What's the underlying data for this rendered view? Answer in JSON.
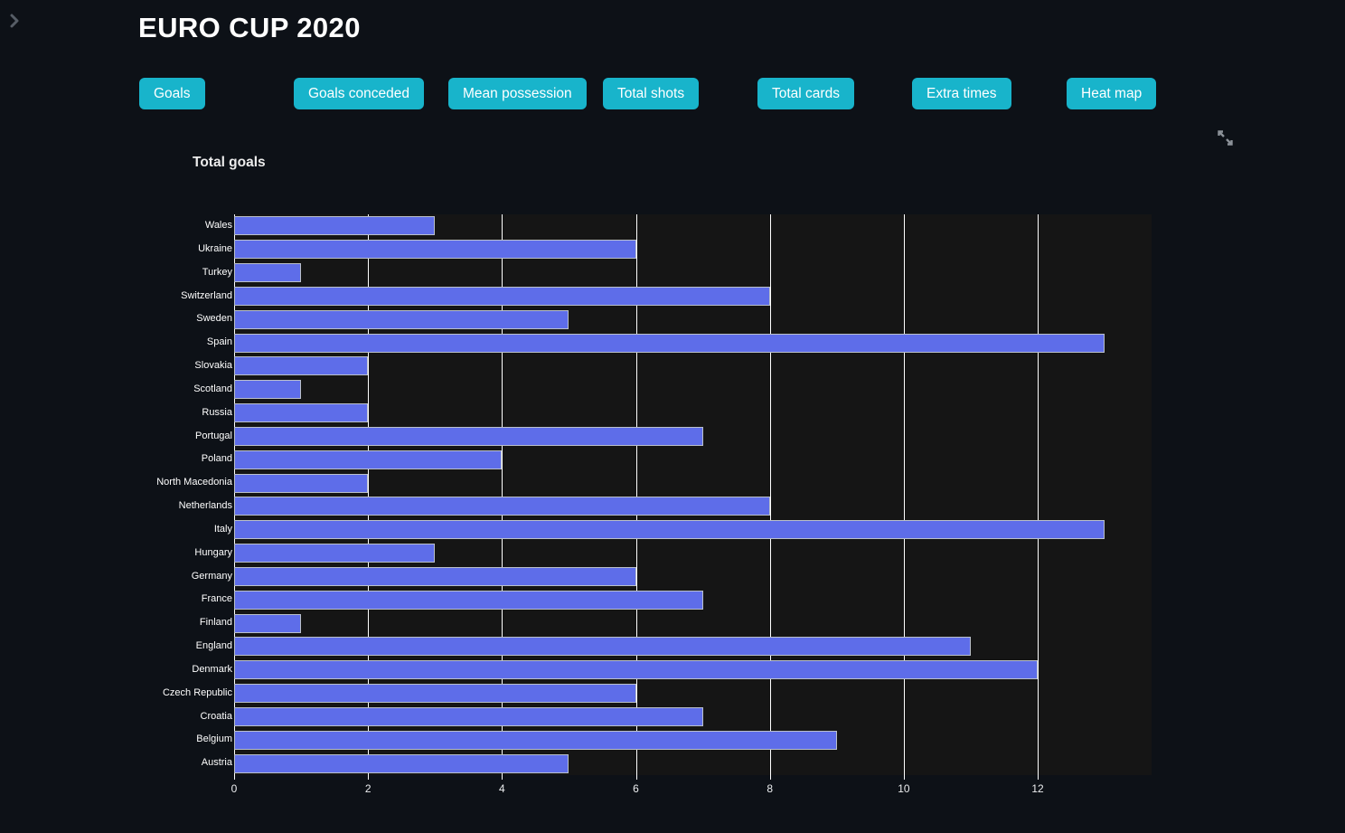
{
  "header": {
    "title": "EURO CUP 2020"
  },
  "icons": {
    "sidebar_toggle": "chevron-right-icon",
    "fullscreen": "expand-diagonal-arrows-icon"
  },
  "tabs": {
    "items": [
      "Goals",
      "Goals conceded",
      "Mean possession",
      "Total shots",
      "Total cards",
      "Extra times",
      "Heat map"
    ]
  },
  "chart": {
    "title": "Total goals"
  },
  "chart_data": {
    "type": "bar",
    "orientation": "horizontal",
    "title": "Total goals",
    "xlabel": "",
    "ylabel": "",
    "categories": [
      "Wales",
      "Ukraine",
      "Turkey",
      "Switzerland",
      "Sweden",
      "Spain",
      "Slovakia",
      "Scotland",
      "Russia",
      "Portugal",
      "Poland",
      "North Macedonia",
      "Netherlands",
      "Italy",
      "Hungary",
      "Germany",
      "France",
      "Finland",
      "England",
      "Denmark",
      "Czech Republic",
      "Croatia",
      "Belgium",
      "Austria"
    ],
    "values": [
      3,
      6,
      1,
      8,
      5,
      13,
      2,
      1,
      2,
      7,
      4,
      2,
      8,
      13,
      3,
      6,
      7,
      1,
      11,
      12,
      6,
      7,
      9,
      5
    ],
    "xlim": [
      0,
      13.7
    ],
    "xticks": [
      0,
      2,
      4,
      6,
      8,
      10,
      12
    ],
    "grid": true,
    "legend": "none"
  },
  "colors": {
    "page_bg": "#0d1117",
    "plot_bg": "#151515",
    "bar_fill": "#5e6de9",
    "bar_border": "#bac0ca",
    "button_bg": "#18b4cb",
    "gridline": "#ffffff",
    "text": "#ffffff"
  }
}
